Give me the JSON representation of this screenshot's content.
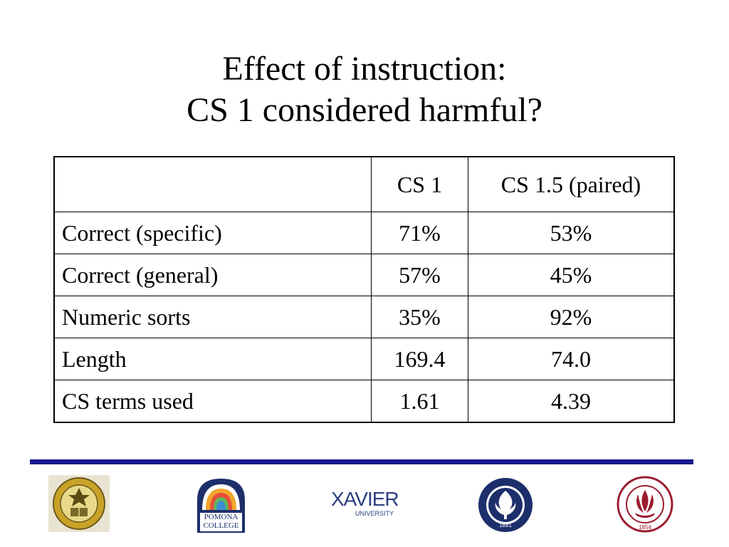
{
  "slide": {
    "title_line1": "Effect of instruction:",
    "title_line2": "CS 1 considered harmful?"
  },
  "table": {
    "headers": [
      "",
      "CS 1",
      "CS 1.5 (paired)"
    ],
    "rows": [
      [
        "Correct (specific)",
        "71%",
        "53%"
      ],
      [
        "Correct (general)",
        "57%",
        "45%"
      ],
      [
        "Numeric sorts",
        "35%",
        "92%"
      ],
      [
        "Length",
        "169.4",
        "74.0"
      ],
      [
        "CS terms used",
        "1.61",
        "4.39"
      ]
    ]
  },
  "footer": {
    "rule_color": "#1a1a8c",
    "logos": [
      {
        "name": "University of California San Diego seal",
        "icon": "ucsd-seal-icon"
      },
      {
        "name": "Pomona College logo",
        "icon": "pomona-logo-icon",
        "text_line1": "POMONA",
        "text_line2": "COLLEGE"
      },
      {
        "name": "Xavier University logo",
        "icon": "xavier-logo-icon",
        "text_main": "XAVIER",
        "text_sub": "UNIVERSITY"
      },
      {
        "name": "University of Connecticut seal",
        "icon": "uconn-seal-icon",
        "year": "1881"
      },
      {
        "name": "Rhode Island College seal",
        "icon": "ric-seal-icon",
        "year": "1854"
      }
    ]
  }
}
